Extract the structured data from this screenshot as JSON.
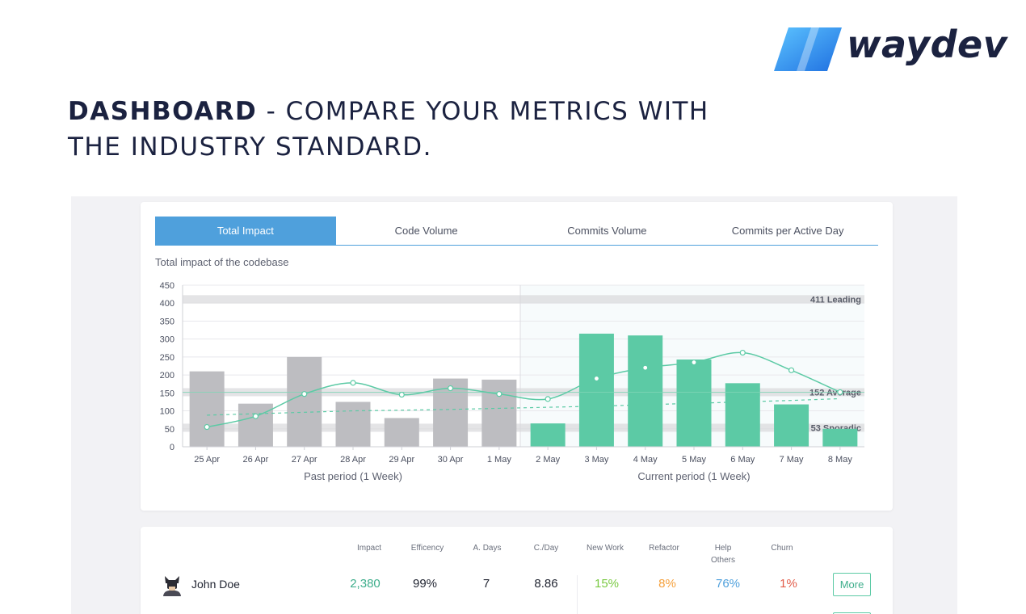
{
  "brand": {
    "name": "waydev",
    "color": "#1b2240",
    "accent": "#2a8cf0"
  },
  "headline": {
    "strong": "DASHBOARD",
    "rest": " - COMPARE YOUR METRICS WITH THE INDUSTRY STANDARD."
  },
  "tabs": [
    {
      "label": "Total Impact",
      "active": true
    },
    {
      "label": "Code Volume",
      "active": false
    },
    {
      "label": "Commits Volume",
      "active": false
    },
    {
      "label": "Commits per Active Day",
      "active": false
    }
  ],
  "chart_subtitle": "Total impact of the codebase",
  "chart_data": {
    "type": "bar",
    "ylim": [
      0,
      450
    ],
    "yticks": [
      0,
      50,
      100,
      150,
      200,
      250,
      300,
      350,
      400,
      450
    ],
    "categories": [
      "25 Apr",
      "26 Apr",
      "27 Apr",
      "28 Apr",
      "29 Apr",
      "30 Apr",
      "1 May",
      "2 May",
      "3 May",
      "4 May",
      "5 May",
      "6 May",
      "7 May",
      "8 May"
    ],
    "series": [
      {
        "values": [
          210,
          120,
          250,
          125,
          80,
          190,
          187,
          65,
          315,
          310,
          243,
          177,
          118,
          50
        ],
        "colors": [
          "#bdbdc1",
          "#5ccaa5"
        ],
        "split_index": 7
      },
      {
        "type": "line",
        "smooth": true,
        "values": [
          55,
          85,
          147,
          178,
          145,
          163,
          147,
          133,
          190,
          220,
          235,
          262,
          213,
          152
        ]
      },
      {
        "type": "line",
        "dashed": true,
        "values": [
          88,
          92,
          96,
          100,
          102,
          104,
          107,
          110,
          113,
          117,
          121,
          125,
          129,
          134
        ]
      }
    ],
    "benchmarks": [
      {
        "label": "411 Leading",
        "value": 411
      },
      {
        "label": "152 Average",
        "value": 152
      },
      {
        "label": "53 Sporadic",
        "value": 53
      }
    ],
    "period_labels": [
      "Past period (1 Week)",
      "Current period (1 Week)"
    ],
    "grid": true
  },
  "table": {
    "columns": [
      "Impact",
      "Efficency",
      "A. Days",
      "C./Day",
      "New Work",
      "Refactor",
      "Help Others",
      "Churn"
    ],
    "rows": [
      {
        "name": "John Doe",
        "avatar_icon": "batman-avatar-icon",
        "cells": [
          {
            "value": "2,380",
            "color": "#3fae8c"
          },
          {
            "value": "99%",
            "color": "#1f2330"
          },
          {
            "value": "7",
            "color": "#1f2330"
          },
          {
            "value": "8.86",
            "color": "#1f2330"
          },
          {
            "value": "15%",
            "color": "#7ac943"
          },
          {
            "value": "8%",
            "color": "#f5a03c"
          },
          {
            "value": "76%",
            "color": "#4fa0dc"
          },
          {
            "value": "1%",
            "color": "#e25c4a"
          }
        ],
        "action": "More"
      }
    ]
  }
}
